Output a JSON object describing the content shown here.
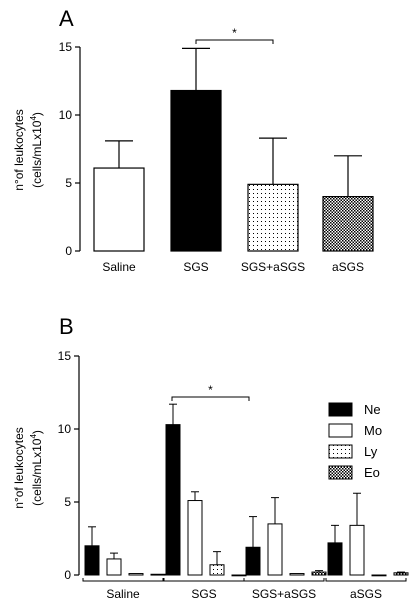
{
  "chart_data": [
    {
      "panel_label": "A",
      "type": "bar",
      "ylabel_line1": "n°of leukocytes",
      "ylabel_line2": "(cells/mLx10",
      "ylabel_sup": "4",
      "ylabel_close": ")",
      "ylim": [
        0,
        15
      ],
      "yticks": [
        "0",
        "5",
        "10",
        "15"
      ],
      "categories": [
        "Saline",
        "SGS",
        "SGS+aSGS",
        "aSGS"
      ],
      "values": [
        6.1,
        11.8,
        4.9,
        4.0
      ],
      "errors": [
        2.0,
        3.1,
        3.4,
        3.0
      ],
      "fills": [
        "white",
        "black",
        "dots",
        "checker"
      ],
      "significance": {
        "from": 1,
        "to": 2,
        "label": "*"
      }
    },
    {
      "panel_label": "B",
      "type": "bar",
      "ylabel_line1": "n°of leukocytes",
      "ylabel_line2": "(cells/mLx10",
      "ylabel_sup": "4",
      "ylabel_close": ")",
      "ylim": [
        0,
        15
      ],
      "yticks": [
        "0",
        "5",
        "10",
        "15"
      ],
      "categories": [
        "Saline",
        "SGS",
        "SGS+aSGS",
        "aSGS"
      ],
      "series": [
        {
          "name": "Ne",
          "fill": "black",
          "values": [
            2.0,
            10.3,
            1.9,
            2.2
          ],
          "errors": [
            1.3,
            1.4,
            2.1,
            1.2
          ]
        },
        {
          "name": "Mo",
          "fill": "white",
          "values": [
            1.1,
            5.1,
            3.5,
            3.4
          ],
          "errors": [
            0.4,
            0.6,
            1.8,
            2.2
          ]
        },
        {
          "name": "Ly",
          "fill": "dots",
          "values": [
            0.1,
            0.7,
            0.1,
            0.0
          ],
          "errors": [
            0.0,
            0.9,
            0.0,
            0.0
          ]
        },
        {
          "name": "Eo",
          "fill": "checker",
          "values": [
            0.05,
            0.0,
            0.2,
            0.15
          ],
          "errors": [
            0.0,
            0.0,
            0.1,
            0.05
          ]
        }
      ],
      "legend_position": "top-right",
      "significance": {
        "from": 0,
        "to": 2,
        "label": "*"
      }
    }
  ]
}
